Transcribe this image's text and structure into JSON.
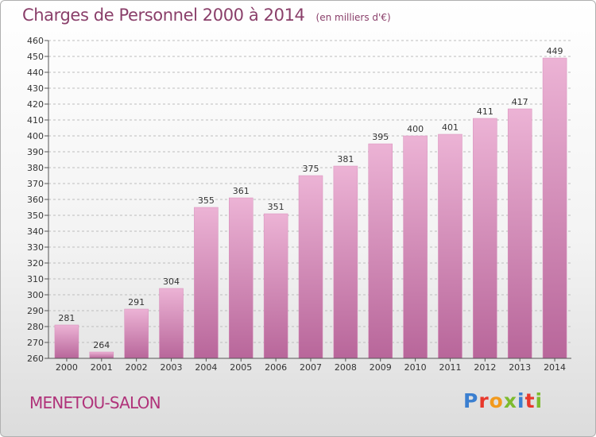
{
  "header": {
    "title": "Charges de Personnel 2000 à 2014",
    "subtitle": "(en milliers d'€)"
  },
  "footer": {
    "town": "MENETOU-SALON",
    "logo_letters": [
      "P",
      "r",
      "o",
      "x",
      "i",
      "t",
      "i"
    ],
    "logo_colors": [
      "#3b7fd0",
      "#e8382c",
      "#f29a1d",
      "#7dbb2e",
      "#3b7fd0",
      "#e8382c",
      "#7dbb2e"
    ]
  },
  "colors": {
    "bar_light": "#ecb3d5",
    "bar_dark": "#b8669a",
    "title": "#8a3f6a",
    "town": "#b0337a"
  },
  "chart_data": {
    "type": "bar",
    "title": "Charges de Personnel 2000 à 2014",
    "subtitle": "(en milliers d'€)",
    "categories": [
      "2000",
      "2001",
      "2002",
      "2003",
      "2004",
      "2005",
      "2006",
      "2007",
      "2008",
      "2009",
      "2010",
      "2011",
      "2012",
      "2013",
      "2014"
    ],
    "values": [
      281,
      264,
      291,
      304,
      355,
      361,
      351,
      375,
      381,
      395,
      400,
      401,
      411,
      417,
      449
    ],
    "value_labels": [
      "281",
      "264",
      "291",
      "304",
      "355",
      "361",
      "351",
      "375",
      "381",
      "395",
      "400",
      "401",
      "411",
      "417",
      "449"
    ],
    "ylim": [
      260,
      460
    ],
    "ytick_step": 10,
    "yticks": [
      "260",
      "270",
      "280",
      "290",
      "300",
      "310",
      "320",
      "330",
      "340",
      "350",
      "360",
      "370",
      "380",
      "390",
      "400",
      "410",
      "420",
      "430",
      "440",
      "450",
      "460"
    ],
    "grid": "horizontal dashed",
    "xlabel": "",
    "ylabel": ""
  }
}
